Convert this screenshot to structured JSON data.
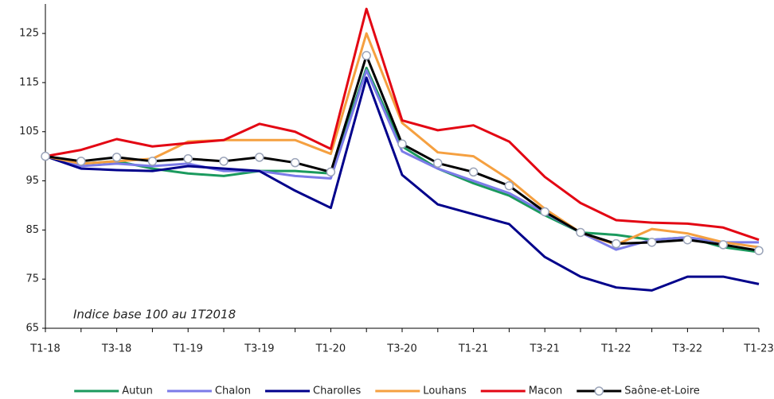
{
  "chart_data": {
    "type": "line",
    "annotation": "Indice base 100 au 1T2018",
    "categories": [
      "T1-18",
      null,
      "T3-18",
      null,
      "T1-19",
      null,
      "T3-19",
      null,
      "T1-20",
      null,
      "T3-20",
      null,
      "T1-21",
      null,
      "T3-21",
      null,
      "T1-22",
      null,
      "T3-22",
      null,
      "T1-23"
    ],
    "ylim": [
      65,
      131
    ],
    "yticks": [
      65,
      75,
      85,
      95,
      105,
      115,
      125
    ],
    "grid": false,
    "legend": "bottom",
    "series": [
      {
        "name": "Autun",
        "color": "#1b9a5e",
        "values": [
          100,
          98.5,
          99,
          97.5,
          96.5,
          96,
          97,
          97,
          96.5,
          118,
          102,
          97.5,
          94.5,
          92,
          88,
          84.5,
          84,
          83,
          83.5,
          81.5,
          80.5
        ]
      },
      {
        "name": "Chalon",
        "color": "#7b7be8",
        "values": [
          100,
          98,
          98.5,
          98,
          98.5,
          97,
          97,
          96,
          95.5,
          117.5,
          101,
          97.5,
          95,
          92.5,
          88.5,
          84.5,
          81,
          83,
          83.5,
          82.5,
          82.5
        ]
      },
      {
        "name": "Charolles",
        "color": "#00008b",
        "values": [
          100,
          97.5,
          97.2,
          97,
          98,
          97.5,
          97,
          93,
          89.5,
          116,
          96.2,
          90.2,
          88.2,
          86.2,
          79.5,
          75.5,
          73.3,
          72.7,
          75.5,
          75.5,
          74
        ]
      },
      {
        "name": "Louhans",
        "color": "#f5a040",
        "values": [
          100,
          98.5,
          99,
          99.5,
          103,
          103.3,
          103.3,
          103.3,
          100.5,
          125,
          106.8,
          100.8,
          100,
          95.3,
          89.3,
          84.5,
          82,
          85.2,
          84.3,
          82.5,
          81.5
        ]
      },
      {
        "name": "Macon",
        "color": "#e30613",
        "values": [
          100,
          101.3,
          103.5,
          102,
          102.7,
          103.3,
          106.6,
          105,
          101.5,
          130,
          107.3,
          105.3,
          106.3,
          103,
          95.8,
          90.5,
          87,
          86.5,
          86.3,
          85.5,
          83
        ]
      },
      {
        "name": "Saône-et-Loire",
        "color": "#000000",
        "marker": "circle",
        "values": [
          100,
          99,
          99.8,
          99,
          99.5,
          99,
          99.8,
          98.7,
          96.8,
          120.5,
          102.5,
          98.6,
          96.8,
          94,
          88.7,
          84.5,
          82.2,
          82.5,
          83,
          82,
          80.8
        ]
      }
    ]
  }
}
